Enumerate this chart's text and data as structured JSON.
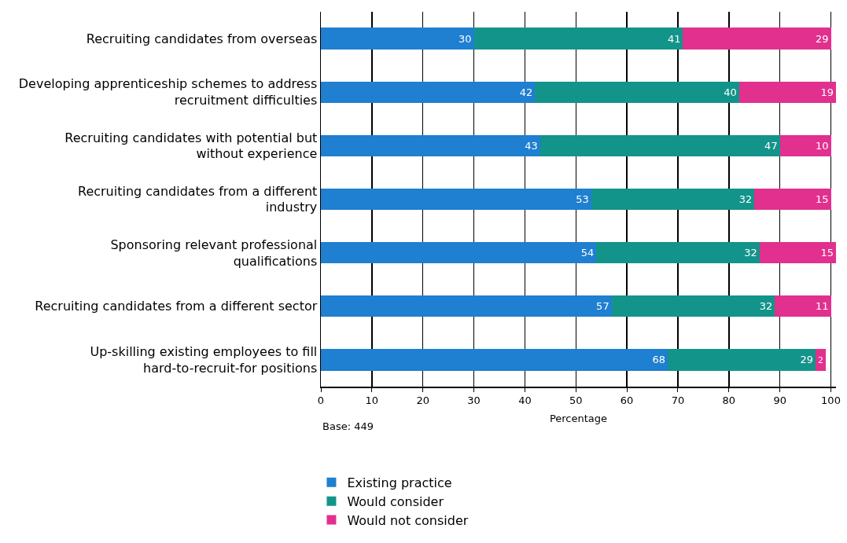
{
  "chart_data": {
    "type": "bar",
    "orientation": "horizontal",
    "stacked": true,
    "categories": [
      "Recruiting candidates from overseas",
      "Developing apprenticeship schemes to address recruitment difficulties",
      "Recruiting candidates with potential but without experience",
      "Recruiting candidates from a different industry",
      "Sponsoring relevant professional qualifications",
      "Recruiting candidates from a different sector",
      "Up-skilling existing employees to fill hard-to-recruit-for positions"
    ],
    "series": [
      {
        "name": "Existing practice",
        "color": "#1f7fd0",
        "values": [
          30,
          42,
          43,
          53,
          54,
          57,
          68
        ]
      },
      {
        "name": "Would consider",
        "color": "#13948a",
        "values": [
          41,
          40,
          47,
          32,
          32,
          32,
          29
        ]
      },
      {
        "name": "Would not consider",
        "color": "#e2308f",
        "values": [
          29,
          19,
          10,
          15,
          15,
          11,
          2
        ]
      }
    ],
    "xlim": [
      0,
      101
    ],
    "xticks": [
      0,
      10,
      20,
      30,
      40,
      50,
      60,
      70,
      80,
      90,
      100
    ],
    "xlabel": "Percentage",
    "annotations": [
      "Base: 449"
    ],
    "data_labels": true,
    "grid": "x",
    "legend": "bottom left"
  }
}
